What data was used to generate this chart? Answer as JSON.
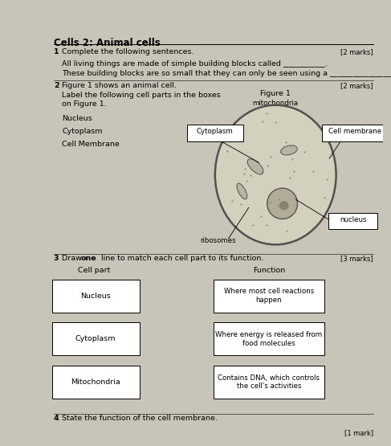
{
  "title": "Cells 2: Animal cells",
  "bg_color": "#c8c4b8",
  "paper_color": "#f2f0e8",
  "q1_marks": "[2 marks]",
  "q1_text": "Complete the following sentences.",
  "q1_line1": "All living things are made of simple building blocks called ___________.",
  "q1_line2": "These building blocks are so small that they can only be seen using a ____________________.",
  "q2_text": "Figure 1 shows an animal cell.",
  "q2_marks": "[2 marks]",
  "q2_instruction": "Label the following cell parts in the boxes\non Figure 1.",
  "q2_labels": [
    "Nucleus",
    "Cytoplasm",
    "Cell Membrane"
  ],
  "fig1_title": "Figure 1",
  "fig1_sub": "mitochondria",
  "fig1_box1": "Cytoplasm",
  "fig1_box2": "Cell membrane",
  "fig1_box3": "nucleus",
  "fig1_ribosomes": "ribosomes",
  "q3_text_pre": "Draw ",
  "q3_text_bold": "one",
  "q3_text_post": " line to match each cell part to its function.",
  "q3_marks": "[3 marks]",
  "q3_col1": "Cell part",
  "q3_col2": "Function",
  "q3_parts": [
    "Nucleus",
    "Cytoplasm",
    "Mitochondria"
  ],
  "q3_funcs": [
    "Where most cell reactions\nhappen",
    "Where energy is released from\nfood molecules",
    "Contains DNA, which controls\nthe cell's activities"
  ],
  "q4_text": "State the function of the cell membrane.",
  "q4_marks": "[1 mark]",
  "cell_color": "#d4d0be",
  "cell_edge": "#555050",
  "nucleus_color": "#b0ac98",
  "mito_color": "#b8b4a4",
  "dot_color": "#909080"
}
